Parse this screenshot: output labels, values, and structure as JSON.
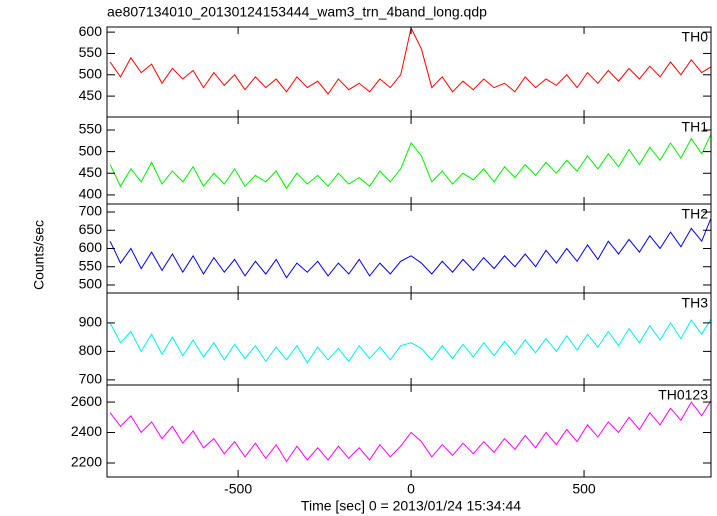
{
  "chart_data": {
    "type": "line",
    "title": "ae807134010_20130124153444_wam3_trn_4band_long.qdp",
    "x_label": "Time [sec] 0 = 2013/01/24 15:34:44",
    "y_label": "Counts/sec",
    "xlim": [
      -879,
      867
    ],
    "xticks": [
      -500,
      0,
      500
    ],
    "x": [
      -870,
      -840,
      -810,
      -780,
      -750,
      -720,
      -690,
      -660,
      -630,
      -600,
      -570,
      -540,
      -510,
      -480,
      -450,
      -420,
      -390,
      -360,
      -330,
      -300,
      -270,
      -240,
      -210,
      -180,
      -150,
      -120,
      -90,
      -60,
      -30,
      0,
      30,
      60,
      90,
      120,
      150,
      180,
      210,
      240,
      270,
      300,
      330,
      360,
      390,
      420,
      450,
      480,
      510,
      540,
      570,
      600,
      630,
      660,
      690,
      720,
      750,
      780,
      810,
      840,
      870
    ],
    "series": [
      {
        "name": "TH0",
        "color": "#ff0000",
        "ylim": [
          401,
          612
        ],
        "yticks": [
          450,
          500,
          550,
          600
        ],
        "values": [
          530,
          495,
          540,
          505,
          525,
          480,
          515,
          490,
          510,
          470,
          505,
          475,
          500,
          465,
          495,
          470,
          490,
          460,
          495,
          470,
          485,
          455,
          490,
          465,
          480,
          460,
          490,
          470,
          500,
          610,
          560,
          470,
          495,
          460,
          485,
          465,
          490,
          470,
          480,
          460,
          495,
          470,
          490,
          475,
          500,
          470,
          505,
          480,
          510,
          485,
          515,
          490,
          520,
          495,
          530,
          500,
          535,
          505,
          520
        ]
      },
      {
        "name": "TH1",
        "color": "#00ee00",
        "ylim": [
          379,
          580
        ],
        "yticks": [
          400,
          450,
          500,
          550
        ],
        "values": [
          470,
          420,
          460,
          430,
          475,
          425,
          455,
          430,
          465,
          420,
          450,
          425,
          460,
          420,
          445,
          430,
          455,
          415,
          450,
          425,
          445,
          420,
          450,
          425,
          440,
          420,
          455,
          430,
          460,
          520,
          490,
          430,
          455,
          425,
          450,
          435,
          460,
          430,
          465,
          440,
          470,
          445,
          475,
          450,
          480,
          455,
          490,
          460,
          495,
          465,
          505,
          470,
          510,
          480,
          520,
          485,
          530,
          495,
          545
        ]
      },
      {
        "name": "TH2",
        "color": "#0000ee",
        "ylim": [
          478,
          722
        ],
        "yticks": [
          500,
          550,
          600,
          650,
          700
        ],
        "values": [
          620,
          560,
          600,
          545,
          590,
          540,
          585,
          535,
          580,
          530,
          575,
          535,
          570,
          525,
          565,
          530,
          570,
          520,
          560,
          535,
          565,
          525,
          560,
          530,
          570,
          525,
          560,
          530,
          565,
          580,
          560,
          530,
          565,
          535,
          570,
          540,
          575,
          545,
          580,
          550,
          585,
          550,
          595,
          560,
          600,
          565,
          610,
          570,
          620,
          585,
          625,
          590,
          635,
          600,
          645,
          605,
          655,
          620,
          690
        ]
      },
      {
        "name": "TH3",
        "color": "#00eeee",
        "ylim": [
          682,
          1005
        ],
        "yticks": [
          700,
          800,
          900
        ],
        "values": [
          900,
          830,
          870,
          800,
          860,
          790,
          850,
          785,
          840,
          780,
          830,
          770,
          825,
          775,
          820,
          765,
          815,
          770,
          820,
          760,
          815,
          770,
          810,
          765,
          820,
          775,
          815,
          770,
          820,
          830,
          810,
          770,
          820,
          775,
          825,
          780,
          830,
          785,
          835,
          790,
          840,
          795,
          845,
          800,
          855,
          805,
          860,
          815,
          870,
          820,
          880,
          830,
          890,
          840,
          900,
          845,
          910,
          860,
          920
        ]
      },
      {
        "name": "TH0123",
        "color": "#ff00ff",
        "ylim": [
          2108,
          2712
        ],
        "yticks": [
          2200,
          2400,
          2600
        ],
        "values": [
          2530,
          2440,
          2510,
          2400,
          2470,
          2360,
          2440,
          2330,
          2410,
          2300,
          2360,
          2260,
          2340,
          2240,
          2330,
          2230,
          2320,
          2210,
          2310,
          2220,
          2300,
          2220,
          2310,
          2230,
          2300,
          2220,
          2320,
          2240,
          2310,
          2400,
          2340,
          2240,
          2320,
          2250,
          2330,
          2260,
          2340,
          2270,
          2360,
          2290,
          2380,
          2300,
          2400,
          2320,
          2420,
          2340,
          2450,
          2370,
          2470,
          2400,
          2500,
          2420,
          2530,
          2450,
          2560,
          2480,
          2600,
          2510,
          2620
        ]
      }
    ]
  }
}
